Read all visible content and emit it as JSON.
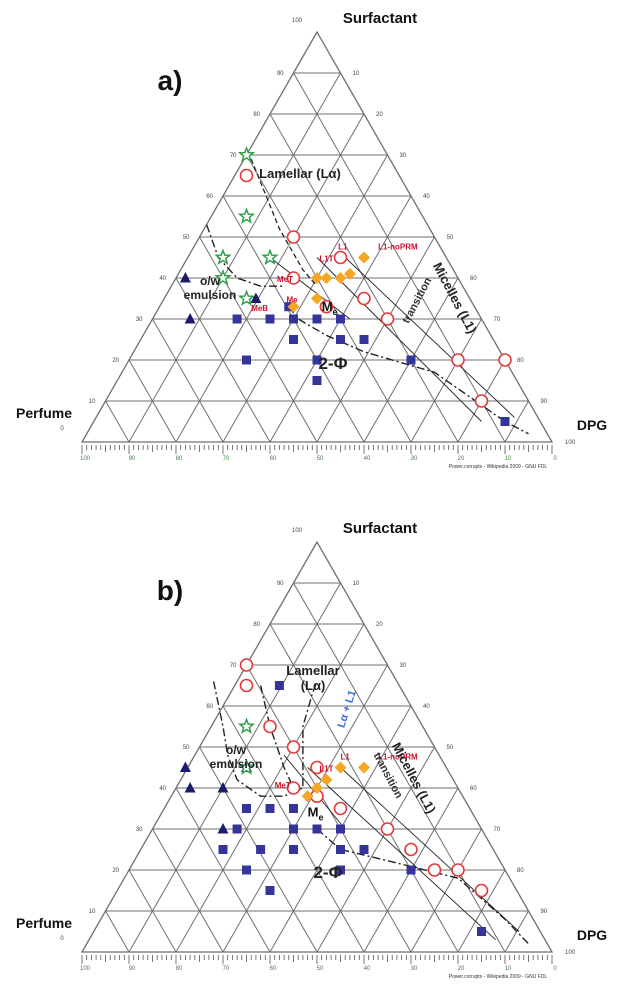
{
  "colors": {
    "grid": "#6f6f6f",
    "tick": "#555555",
    "square": "#34349a",
    "triangle": "#1c1c6e",
    "circle": "#e23b3b",
    "star": "#2da04a",
    "diamond": "#f5a623",
    "red_label": "#c8102e",
    "blue_label": "#3e6fd6",
    "phase_line": "#222222"
  },
  "chart_data": [
    {
      "type": "scatter",
      "subtype": "ternary",
      "panel_label": "a)",
      "axes": {
        "top": "Surfactant",
        "left": "Perfume",
        "right": "DPG"
      },
      "grid_ticks": [
        "10",
        "20",
        "30",
        "40",
        "50",
        "60",
        "70",
        "80",
        "90",
        "100"
      ],
      "top_corner_value": "100",
      "left_corner_value": "0",
      "right_corner_value": "100",
      "bottom_scale_labels": [
        "100",
        "90",
        "80",
        "70",
        "60",
        "50",
        "40",
        "30",
        "20",
        "10",
        "0"
      ],
      "credit": "Power.corrupts - Wikipedia 2009 - GNU FDL",
      "regions": [
        "Lamellar (Lα)",
        "o/w\nemulsion",
        "2-Φ",
        "Micelles (L1)",
        "transition"
      ],
      "me_label": "M",
      "me_subscript": "e",
      "series": [
        {
          "marker": "square",
          "points": [
            [
              0.4,
              0.3
            ],
            [
              0.45,
              0.3
            ],
            [
              0.5,
              0.3
            ],
            [
              0.55,
              0.3
            ],
            [
              0.44,
              0.33
            ],
            [
              0.33,
              0.3
            ],
            [
              0.45,
              0.25
            ],
            [
              0.55,
              0.25
            ],
            [
              0.6,
              0.25
            ],
            [
              0.35,
              0.2
            ],
            [
              0.5,
              0.2
            ],
            [
              0.7,
              0.2
            ],
            [
              0.5,
              0.15
            ],
            [
              0.9,
              0.05
            ]
          ]
        },
        {
          "marker": "triangle",
          "points": [
            [
              0.22,
              0.4
            ],
            [
              0.23,
              0.3
            ],
            [
              0.37,
              0.35
            ]
          ]
        },
        {
          "marker": "circle",
          "points": [
            [
              0.35,
              0.65
            ],
            [
              0.45,
              0.5
            ],
            [
              0.55,
              0.45
            ],
            [
              0.45,
              0.4
            ],
            [
              0.52,
              0.33
            ],
            [
              0.65,
              0.3
            ],
            [
              0.6,
              0.35
            ],
            [
              0.8,
              0.2
            ],
            [
              0.85,
              0.1
            ],
            [
              0.9,
              0.2
            ]
          ]
        },
        {
          "marker": "star",
          "points": [
            [
              0.35,
              0.7
            ],
            [
              0.35,
              0.55
            ],
            [
              0.4,
              0.45
            ],
            [
              0.3,
              0.4
            ],
            [
              0.35,
              0.35
            ],
            [
              0.3,
              0.45
            ]
          ]
        },
        {
          "marker": "diamond",
          "points": [
            [
              0.6,
              0.45
            ],
            [
              0.5,
              0.4
            ],
            [
              0.52,
              0.4
            ],
            [
              0.55,
              0.4
            ],
            [
              0.5,
              0.35
            ],
            [
              0.45,
              0.33
            ],
            [
              0.57,
              0.41
            ]
          ]
        }
      ],
      "point_labels": [
        {
          "text": "L1-noPRM",
          "at": [
            0.63,
            0.47
          ]
        },
        {
          "text": "L1",
          "at": [
            0.545,
            0.47
          ]
        },
        {
          "text": "L1T",
          "at": [
            0.505,
            0.44
          ]
        },
        {
          "text": "MeT",
          "at": [
            0.415,
            0.39
          ]
        },
        {
          "text": "Me",
          "at": [
            0.435,
            0.34
          ]
        },
        {
          "text": "MeB",
          "at": [
            0.36,
            0.32
          ]
        }
      ]
    },
    {
      "type": "scatter",
      "subtype": "ternary",
      "panel_label": "b)",
      "axes": {
        "top": "Surfactant",
        "left": "Perfume",
        "right": "DPG"
      },
      "grid_ticks": [
        "10",
        "20",
        "30",
        "40",
        "50",
        "60",
        "70",
        "80",
        "90",
        "100"
      ],
      "top_corner_value": "100",
      "left_corner_value": "0",
      "right_corner_value": "100",
      "bottom_scale_labels": [
        "100",
        "90",
        "80",
        "70",
        "60",
        "50",
        "40",
        "30",
        "20",
        "10",
        "0"
      ],
      "credit": "Power.corrupts - Wikipedia 2009 - GNU FDL",
      "regions": [
        "Lamellar\n(Lα)",
        "o/w\nemulsion",
        "2-Φ",
        "Micelles (L1)",
        "transition",
        "Lα + L1"
      ],
      "me_label": "M",
      "me_subscript": "e",
      "series": [
        {
          "marker": "square",
          "points": [
            [
              0.42,
              0.65
            ],
            [
              0.4,
              0.55
            ],
            [
              0.45,
              0.35
            ],
            [
              0.4,
              0.35
            ],
            [
              0.35,
              0.35
            ],
            [
              0.45,
              0.3
            ],
            [
              0.5,
              0.3
            ],
            [
              0.55,
              0.3
            ],
            [
              0.33,
              0.3
            ],
            [
              0.38,
              0.25
            ],
            [
              0.3,
              0.25
            ],
            [
              0.45,
              0.25
            ],
            [
              0.55,
              0.25
            ],
            [
              0.35,
              0.2
            ],
            [
              0.55,
              0.2
            ],
            [
              0.7,
              0.2
            ],
            [
              0.4,
              0.15
            ],
            [
              0.7,
              0.25
            ],
            [
              0.6,
              0.25
            ],
            [
              0.85,
              0.05
            ]
          ]
        },
        {
          "marker": "triangle",
          "points": [
            [
              0.22,
              0.45
            ],
            [
              0.23,
              0.4
            ],
            [
              0.35,
              0.45
            ],
            [
              0.3,
              0.4
            ],
            [
              0.3,
              0.3
            ]
          ]
        },
        {
          "marker": "circle",
          "points": [
            [
              0.35,
              0.7
            ],
            [
              0.35,
              0.65
            ],
            [
              0.4,
              0.55
            ],
            [
              0.45,
              0.5
            ],
            [
              0.5,
              0.45
            ],
            [
              0.45,
              0.4
            ],
            [
              0.5,
              0.38
            ],
            [
              0.55,
              0.35
            ],
            [
              0.65,
              0.3
            ],
            [
              0.7,
              0.25
            ],
            [
              0.75,
              0.2
            ],
            [
              0.8,
              0.2
            ],
            [
              0.85,
              0.15
            ]
          ]
        },
        {
          "marker": "star",
          "points": [
            [
              0.35,
              0.55
            ],
            [
              0.35,
              0.45
            ]
          ]
        },
        {
          "marker": "diamond",
          "points": [
            [
              0.6,
              0.45
            ],
            [
              0.55,
              0.45
            ],
            [
              0.5,
              0.4
            ],
            [
              0.52,
              0.42
            ],
            [
              0.48,
              0.38
            ]
          ]
        }
      ],
      "point_labels": [
        {
          "text": "L1-noPRM",
          "at": [
            0.63,
            0.47
          ]
        },
        {
          "text": "L1",
          "at": [
            0.55,
            0.47
          ]
        },
        {
          "text": "L1T",
          "at": [
            0.505,
            0.44
          ]
        },
        {
          "text": "MeT",
          "at": [
            0.41,
            0.4
          ]
        }
      ]
    }
  ]
}
